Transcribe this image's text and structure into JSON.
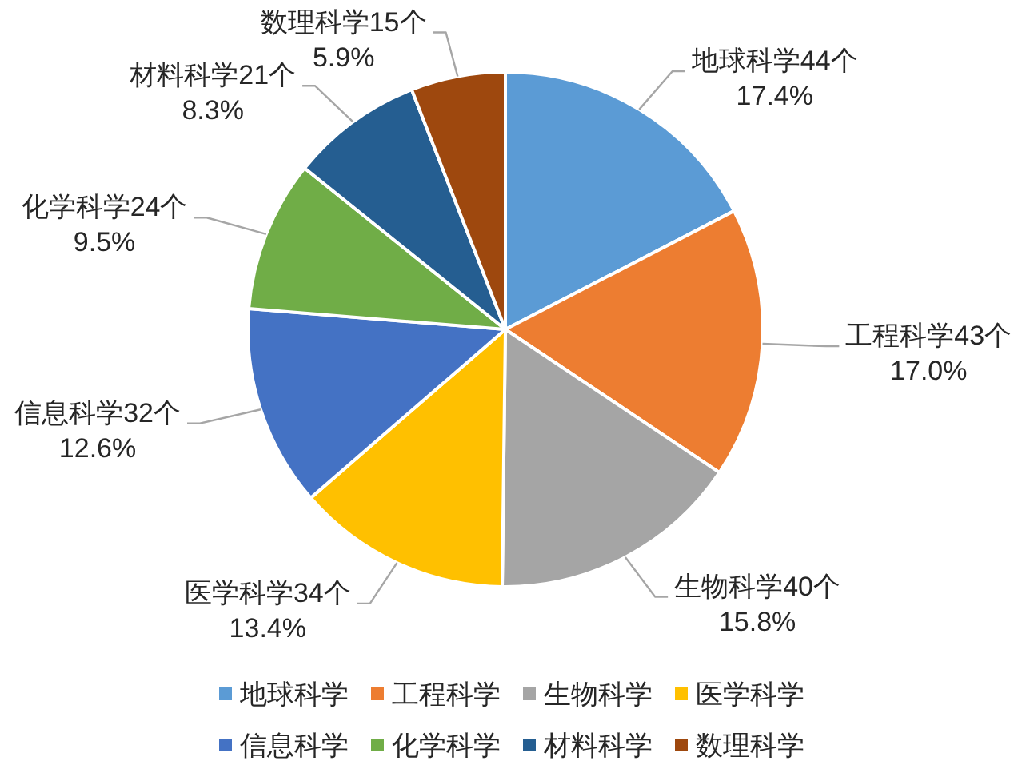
{
  "chart_data": {
    "type": "pie",
    "categories": [
      "地球科学",
      "工程科学",
      "生物科学",
      "医学科学",
      "信息科学",
      "化学科学",
      "材料科学",
      "数理科学"
    ],
    "values": [
      44,
      43,
      40,
      34,
      32,
      24,
      21,
      15
    ],
    "colors": [
      "#5b9bd5",
      "#ed7d31",
      "#a5a5a5",
      "#ffc000",
      "#4472c4",
      "#70ad47",
      "#255e91",
      "#9e480e"
    ],
    "value_labels": [
      "地球科学44个\n17.4%",
      "工程科学43个\n17.0%",
      "生物科学40个\n15.8%",
      "医学科学34个\n13.4%",
      "信息科学32个\n12.6%",
      "化学科学24个\n9.5%",
      "材料科学21个\n8.3%",
      "数理科学15个\n5.9%"
    ],
    "legend": "bottom"
  }
}
